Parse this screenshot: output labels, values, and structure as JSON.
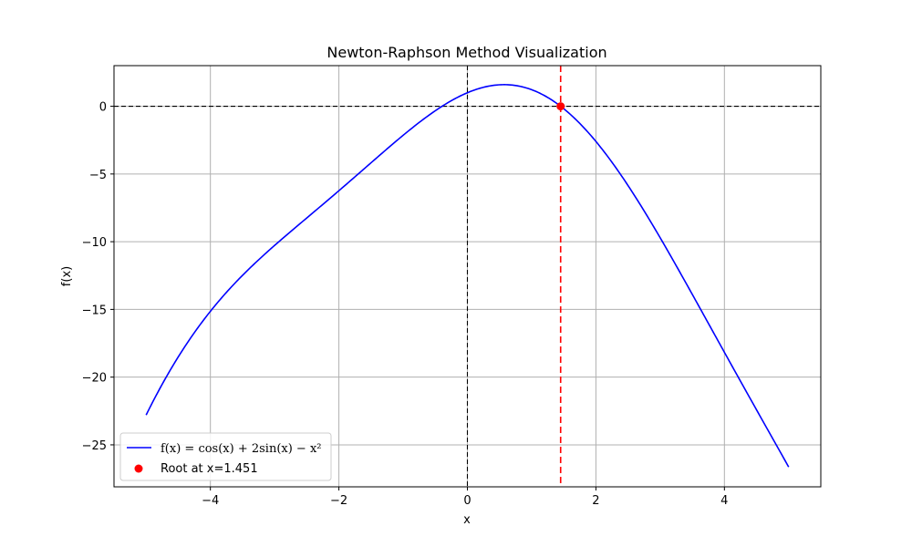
{
  "chart_data": {
    "type": "line",
    "title": "Newton-Raphson Method Visualization",
    "xlabel": "x",
    "ylabel": "f(x)",
    "xlim": [
      -5.5,
      5.5
    ],
    "ylim": [
      -28.1,
      3.0
    ],
    "xticks": [
      -4,
      -2,
      0,
      2,
      4
    ],
    "yticks": [
      0,
      -5,
      -10,
      -15,
      -20,
      -25
    ],
    "xtick_labels": [
      "−4",
      "−2",
      "0",
      "2",
      "4"
    ],
    "ytick_labels": [
      "0",
      "−5",
      "−10",
      "−15",
      "−20",
      "−25"
    ],
    "grid": true,
    "legend_position": "lower-left",
    "series": [
      {
        "name": "f(x) = cos(x) + 2sin(x) − x²",
        "function": "cos(x) + 2*sin(x) - x^2",
        "x_range": [
          -5,
          5
        ],
        "color": "#0000ff",
        "points": [
          {
            "x": -5,
            "y": -22.8
          },
          {
            "x": -4,
            "y": -15.1
          },
          {
            "x": -3,
            "y": -10.3
          },
          {
            "x": -2,
            "y": -6.2
          },
          {
            "x": -1,
            "y": -2.1
          },
          {
            "x": 0,
            "y": 1.0
          },
          {
            "x": 0.5,
            "y": 1.6
          },
          {
            "x": 1,
            "y": 1.2
          },
          {
            "x": 2,
            "y": -2.6
          },
          {
            "x": 3,
            "y": -9.7
          },
          {
            "x": 4,
            "y": -18.2
          },
          {
            "x": 5,
            "y": -26.6
          }
        ]
      }
    ],
    "root": {
      "label": "Root at x=1.451",
      "x": 1.451,
      "y": 0,
      "color": "#ff0000"
    },
    "reference_lines": {
      "horizontal_y": 0,
      "vertical_x": 0,
      "root_vertical_x": 1.451
    }
  }
}
